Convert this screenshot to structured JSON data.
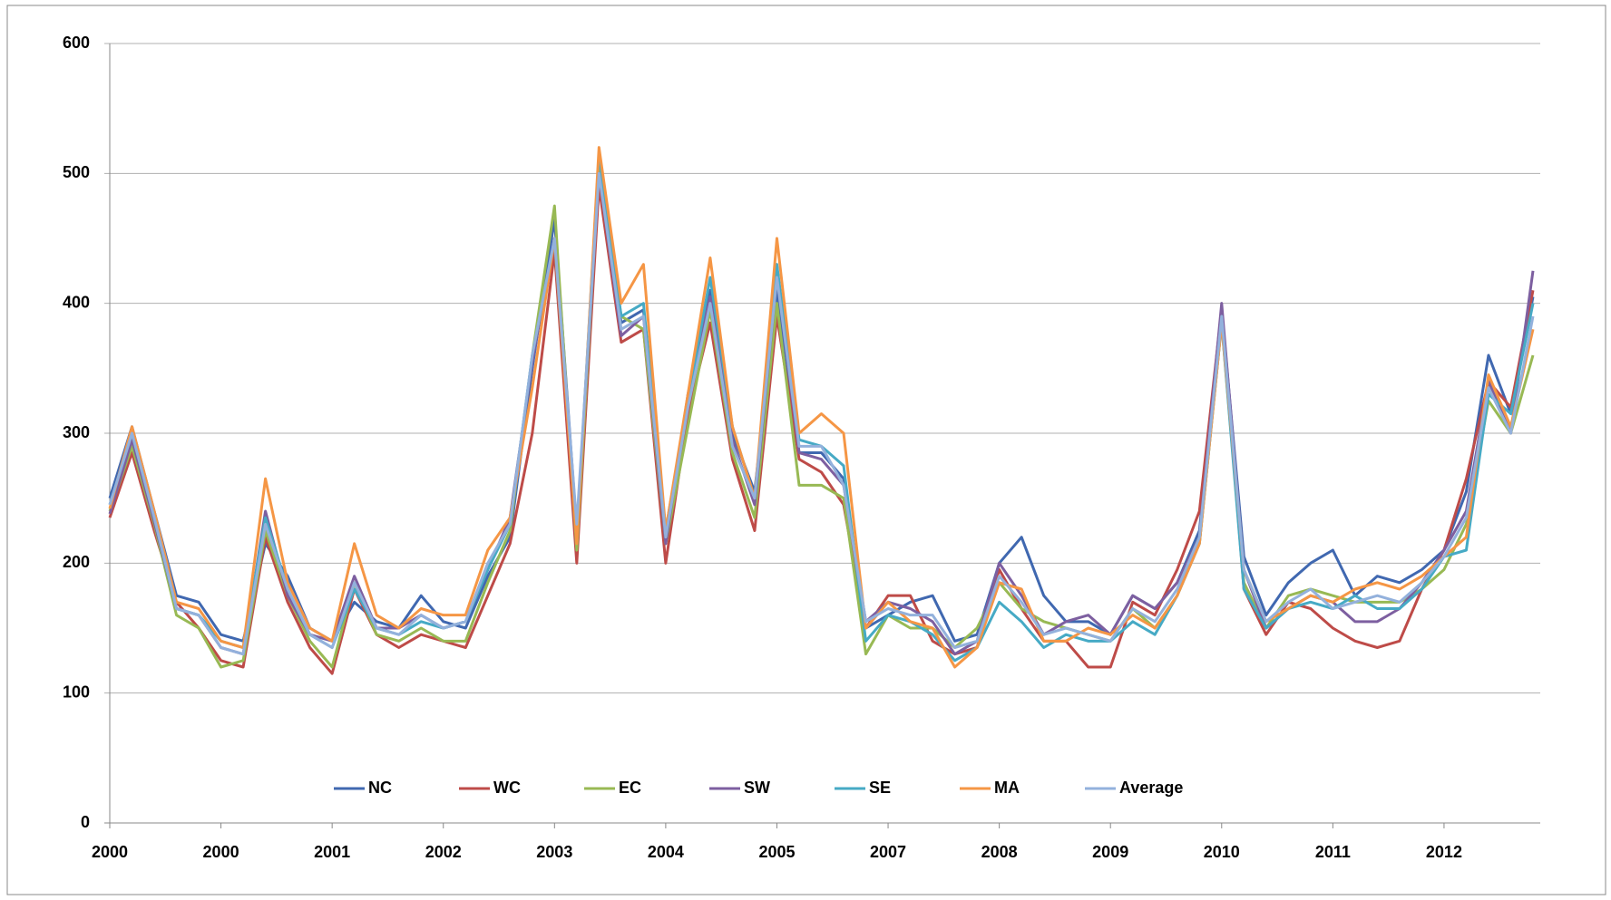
{
  "chart_data": {
    "type": "line",
    "categories": [
      "2000",
      null,
      null,
      null,
      null,
      "2000",
      null,
      null,
      null,
      null,
      "2001",
      null,
      null,
      null,
      null,
      "2002",
      null,
      null,
      null,
      null,
      "2003",
      null,
      null,
      null,
      null,
      "2004",
      null,
      null,
      null,
      null,
      "2005",
      null,
      null,
      null,
      null,
      "2007",
      null,
      null,
      null,
      null,
      "2008",
      null,
      null,
      null,
      null,
      "2009",
      null,
      null,
      null,
      null,
      "2010",
      null,
      null,
      null,
      null,
      "2011",
      null,
      null,
      null,
      null,
      "2012",
      null,
      null,
      null,
      null
    ],
    "ylim": [
      0,
      600
    ],
    "yticks": [
      0,
      100,
      200,
      300,
      400,
      500,
      600
    ],
    "grid": true,
    "legend": "bottom",
    "series": [
      {
        "name": "NC",
        "color": "#4068b0",
        "values": [
          250,
          305,
          240,
          175,
          170,
          145,
          140,
          215,
          190,
          150,
          140,
          170,
          155,
          150,
          175,
          155,
          150,
          190,
          220,
          350,
          465,
          225,
          495,
          385,
          395,
          225,
          325,
          410,
          300,
          255,
          410,
          285,
          285,
          265,
          150,
          160,
          170,
          175,
          140,
          145,
          200,
          220,
          175,
          155,
          155,
          145,
          175,
          165,
          185,
          225,
          395,
          205,
          160,
          185,
          200,
          210,
          175,
          190,
          185,
          195,
          210,
          255,
          360,
          315,
          405
        ]
      },
      {
        "name": "WC",
        "color": "#be4b48",
        "values": [
          235,
          285,
          225,
          170,
          150,
          125,
          120,
          220,
          170,
          135,
          115,
          180,
          145,
          135,
          145,
          140,
          135,
          175,
          215,
          300,
          440,
          200,
          490,
          370,
          380,
          200,
          315,
          385,
          280,
          225,
          390,
          280,
          270,
          245,
          150,
          175,
          175,
          140,
          130,
          135,
          195,
          165,
          140,
          140,
          120,
          120,
          170,
          160,
          195,
          240,
          395,
          180,
          145,
          170,
          165,
          150,
          140,
          135,
          140,
          180,
          210,
          265,
          340,
          320,
          410
        ]
      },
      {
        "name": "EC",
        "color": "#98b954",
        "values": [
          240,
          290,
          230,
          160,
          150,
          120,
          125,
          225,
          175,
          140,
          120,
          185,
          145,
          140,
          150,
          140,
          140,
          185,
          225,
          360,
          475,
          210,
          505,
          390,
          380,
          215,
          305,
          395,
          285,
          235,
          400,
          260,
          260,
          250,
          130,
          160,
          150,
          150,
          135,
          150,
          185,
          165,
          155,
          150,
          145,
          140,
          165,
          150,
          175,
          215,
          385,
          185,
          150,
          175,
          180,
          175,
          170,
          170,
          170,
          180,
          195,
          230,
          325,
          300,
          360
        ]
      },
      {
        "name": "SW",
        "color": "#7d5fa0",
        "values": [
          238,
          295,
          232,
          165,
          160,
          135,
          130,
          240,
          175,
          145,
          140,
          190,
          150,
          150,
          160,
          150,
          155,
          195,
          235,
          355,
          450,
          225,
          500,
          375,
          390,
          215,
          330,
          405,
          295,
          245,
          420,
          285,
          280,
          260,
          155,
          170,
          165,
          155,
          130,
          140,
          200,
          175,
          145,
          155,
          160,
          145,
          175,
          165,
          185,
          220,
          400,
          195,
          150,
          165,
          175,
          170,
          155,
          155,
          165,
          185,
          210,
          240,
          340,
          300,
          425
        ]
      },
      {
        "name": "SE",
        "color": "#46aac5",
        "values": [
          245,
          300,
          235,
          165,
          160,
          140,
          135,
          235,
          180,
          145,
          135,
          180,
          150,
          145,
          155,
          150,
          155,
          195,
          230,
          360,
          448,
          220,
          515,
          390,
          400,
          225,
          325,
          420,
          305,
          250,
          430,
          295,
          290,
          275,
          140,
          160,
          155,
          145,
          125,
          135,
          170,
          155,
          135,
          145,
          140,
          140,
          155,
          145,
          175,
          215,
          385,
          180,
          150,
          165,
          170,
          165,
          175,
          165,
          165,
          180,
          205,
          210,
          330,
          315,
          400
        ]
      },
      {
        "name": "MA",
        "color": "#f59645",
        "values": [
          242,
          305,
          240,
          170,
          165,
          140,
          135,
          265,
          185,
          150,
          140,
          215,
          160,
          150,
          165,
          160,
          160,
          210,
          235,
          335,
          450,
          215,
          520,
          400,
          430,
          225,
          330,
          435,
          305,
          250,
          450,
          300,
          315,
          300,
          150,
          170,
          155,
          150,
          120,
          135,
          185,
          180,
          140,
          140,
          150,
          145,
          160,
          150,
          175,
          215,
          385,
          195,
          155,
          165,
          175,
          170,
          180,
          185,
          180,
          190,
          205,
          220,
          345,
          305,
          380
        ]
      },
      {
        "name": "Average",
        "color": "#93b1dc",
        "values": [
          245,
          300,
          235,
          165,
          160,
          135,
          130,
          230,
          180,
          145,
          135,
          185,
          150,
          145,
          160,
          150,
          155,
          200,
          230,
          360,
          450,
          230,
          500,
          380,
          390,
          220,
          320,
          400,
          290,
          250,
          420,
          290,
          290,
          260,
          155,
          165,
          160,
          160,
          135,
          140,
          190,
          170,
          145,
          150,
          145,
          140,
          165,
          155,
          180,
          220,
          390,
          195,
          155,
          170,
          180,
          165,
          170,
          175,
          170,
          185,
          205,
          235,
          335,
          300,
          390
        ]
      }
    ]
  }
}
